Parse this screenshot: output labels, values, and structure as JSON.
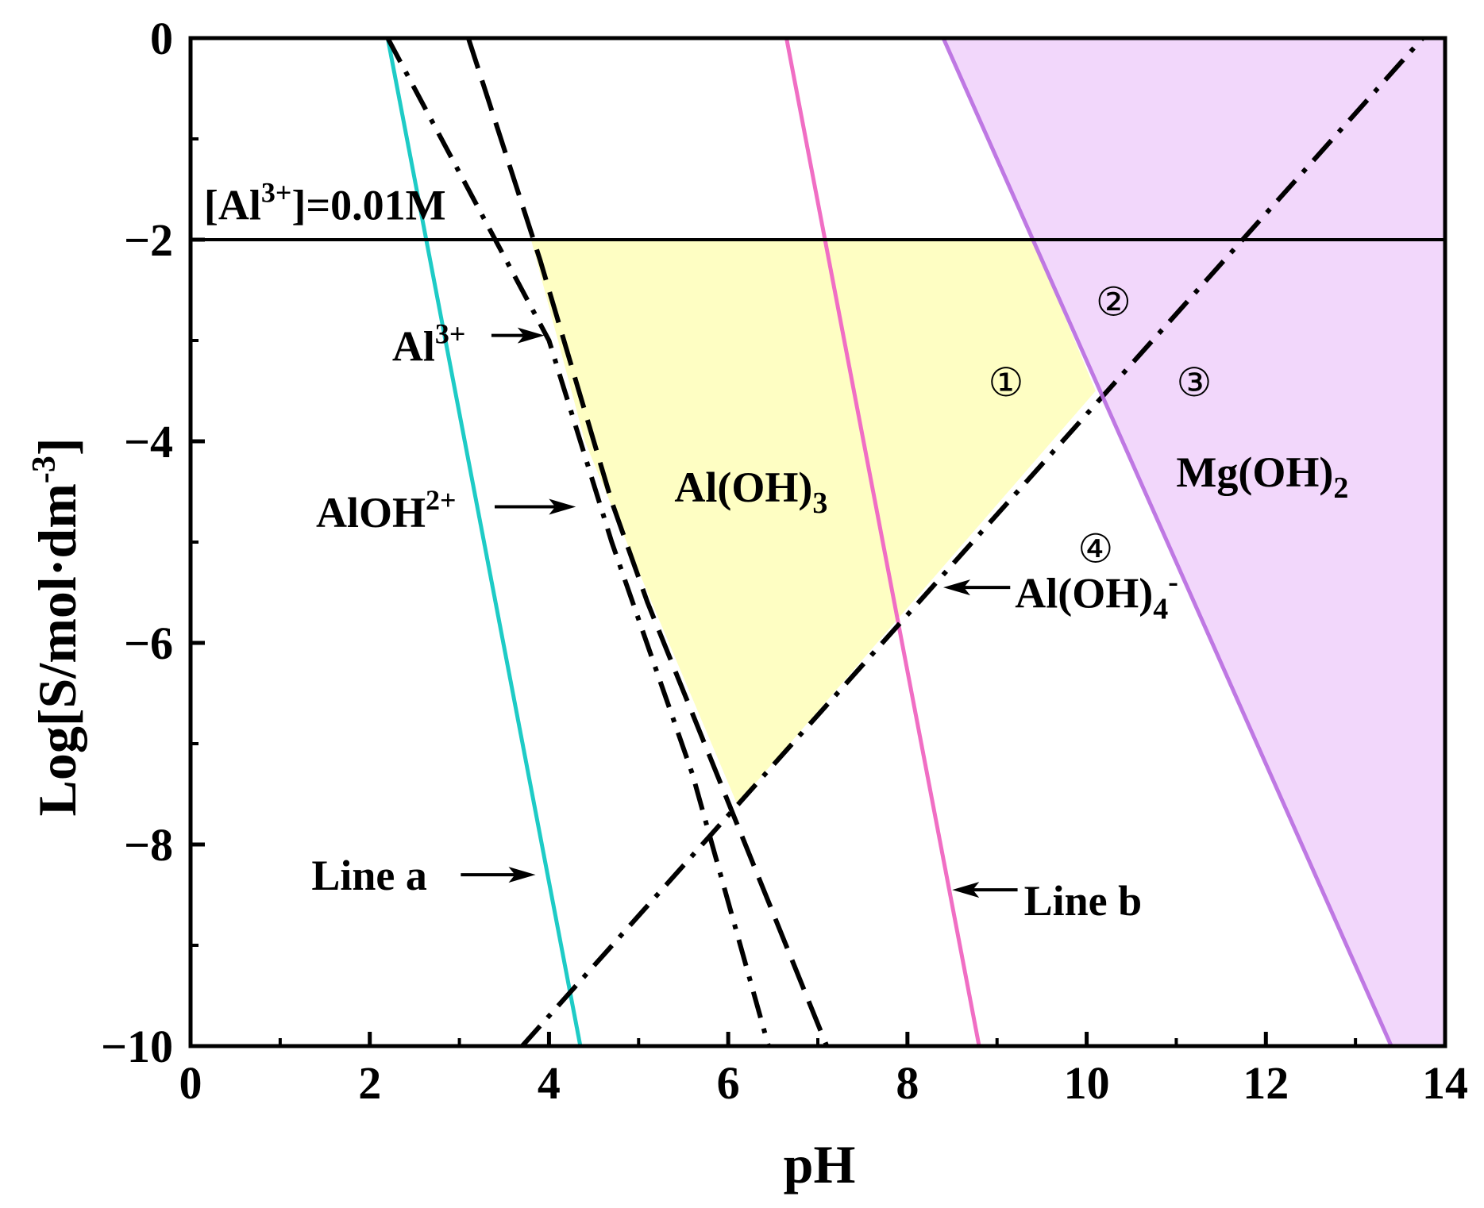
{
  "chart_data": {
    "type": "line",
    "xlabel": "pH",
    "ylabel": "Log[S/mol·dm",
    "ylabel_sup": "-3",
    "ylabel_close": "]",
    "xlim": [
      0,
      14
    ],
    "ylim": [
      -10,
      0
    ],
    "x_ticks": [
      0,
      2,
      4,
      6,
      8,
      10,
      12,
      14
    ],
    "x_tick_labels": [
      "0",
      "2",
      "4",
      "6",
      "8",
      "10",
      "12",
      "14"
    ],
    "y_ticks": [
      0,
      -2,
      -4,
      -6,
      -8,
      -10
    ],
    "y_tick_labels": [
      "0",
      "−2",
      "−4",
      "−6",
      "−8",
      "−10"
    ],
    "grid": false,
    "series": [
      {
        "name": "Line a",
        "style": "solid",
        "color": "#1ecbc6",
        "points": [
          [
            2.2,
            0
          ],
          [
            4.35,
            -10
          ]
        ]
      },
      {
        "name": "Line b",
        "style": "solid",
        "color": "#f06ec4",
        "points": [
          [
            6.65,
            0
          ],
          [
            8.8,
            -10
          ]
        ]
      },
      {
        "name": "Al3+",
        "style": "dashdot",
        "color": "#000000",
        "points": [
          [
            2.2,
            0
          ],
          [
            4.0,
            -3.0
          ],
          [
            4.7,
            -5.0
          ],
          [
            5.6,
            -7.3
          ],
          [
            6.45,
            -10
          ]
        ]
      },
      {
        "name": "AlOH2+",
        "style": "dashed",
        "color": "#000000",
        "points": [
          [
            3.1,
            0
          ],
          [
            3.9,
            -2.2
          ],
          [
            4.7,
            -4.6
          ],
          [
            5.1,
            -5.6
          ],
          [
            7.1,
            -10
          ]
        ]
      },
      {
        "name": "Al(OH)4-",
        "style": "dashdot",
        "color": "#000000",
        "points": [
          [
            3.7,
            -10
          ],
          [
            13.75,
            0
          ]
        ]
      },
      {
        "name": "Mg(OH)2",
        "style": "solid",
        "color": "#b86be0",
        "points": [
          [
            8.4,
            0
          ],
          [
            13.4,
            -10
          ]
        ]
      },
      {
        "name": "[Al3+]=0.01M",
        "style": "solid",
        "color": "#000000",
        "points": [
          [
            0,
            -2
          ],
          [
            14,
            -2
          ]
        ]
      }
    ],
    "regions": [
      {
        "name": "Al(OH)3",
        "color": "#fefeb8",
        "points": [
          [
            3.8,
            -2
          ],
          [
            9.4,
            -2
          ],
          [
            10.1,
            -3.5
          ],
          [
            6.1,
            -7.6
          ],
          [
            5.1,
            -5.5
          ],
          [
            4.4,
            -4.0
          ]
        ]
      },
      {
        "name": "Mg(OH)2",
        "color": "#f0d0fa",
        "points": [
          [
            8.4,
            0
          ],
          [
            14,
            0
          ],
          [
            14,
            -10
          ],
          [
            13.4,
            -10
          ]
        ]
      }
    ],
    "annotations": {
      "al3_line": {
        "main": "[Al",
        "sup": "3+",
        "rest": "]=0.01M",
        "at": [
          0.15,
          -1.8
        ]
      },
      "al3": {
        "main": "Al",
        "sup": "3+",
        "at": [
          2.25,
          -3.2
        ],
        "arrow_to": [
          3.95,
          -2.95
        ]
      },
      "aloh": {
        "main": "AlOH",
        "sup": "2+",
        "at": [
          1.4,
          -4.85
        ],
        "arrow_to": [
          4.3,
          -4.65
        ]
      },
      "aloh3": {
        "main": "Al(OH)",
        "sub": "3",
        "at": [
          5.4,
          -4.6
        ]
      },
      "aloh4": {
        "main": "Al(OH)",
        "sub": "4",
        "sup": "-",
        "at": [
          9.2,
          -5.65
        ],
        "arrow_to": [
          8.4,
          -5.45
        ]
      },
      "mgoh2": {
        "main": "Mg(OH)",
        "sub": "2",
        "at": [
          11.0,
          -4.45
        ]
      },
      "line_a": {
        "text": "Line a",
        "at": [
          1.35,
          -8.45
        ],
        "arrow_to": [
          3.85,
          -8.3
        ]
      },
      "line_b": {
        "text": "Line b",
        "at": [
          9.3,
          -8.7
        ],
        "arrow_to": [
          8.5,
          -8.45
        ]
      },
      "r1": {
        "text": "①",
        "at": [
          9.1,
          -3.55
        ]
      },
      "r2": {
        "text": "②",
        "at": [
          10.3,
          -2.75
        ]
      },
      "r3": {
        "text": "③",
        "at": [
          11.2,
          -3.55
        ]
      },
      "r4": {
        "text": "④",
        "at": [
          10.1,
          -5.2
        ]
      }
    }
  }
}
